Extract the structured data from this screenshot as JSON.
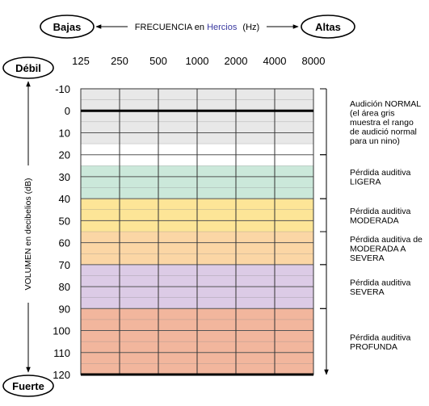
{
  "chart_data": {
    "type": "heatmap",
    "title": "",
    "xlabel": {
      "left_end": "Bajas",
      "right_end": "Altas",
      "prefix": "FRECUENCIA en",
      "unit_word": "Hercios",
      "unit_abbr": "(Hz)"
    },
    "ylabel": {
      "top_end": "Débil",
      "bottom_end": "Fuerte",
      "text": "VOLUMEN en decibelios (dB)"
    },
    "x_ticks": [
      125,
      250,
      500,
      1000,
      2000,
      4000,
      8000
    ],
    "y_ticks": [
      -10,
      0,
      10,
      20,
      30,
      40,
      50,
      60,
      70,
      80,
      90,
      100,
      110,
      120
    ],
    "ylim": [
      -10,
      120
    ],
    "y_inverted": true,
    "reference_line_db": 0,
    "bands": [
      {
        "from": -10,
        "to": 15,
        "color": "#e8e8e8",
        "label": [
          "Audición NORMAL",
          "(el área gris",
          "muestra el rango",
          "de audició normal",
          "para un nino)"
        ],
        "bracket": [
          -10,
          20
        ]
      },
      {
        "from": 25,
        "to": 40,
        "color": "#cbe8da",
        "label": [
          "Pérdida auditiva",
          "LIGERA"
        ],
        "bracket": [
          20,
          40
        ]
      },
      {
        "from": 40,
        "to": 55,
        "color": "#fde597",
        "label": [
          "Pérdida auditiva",
          "MODERADA"
        ],
        "bracket": [
          40,
          55
        ]
      },
      {
        "from": 55,
        "to": 70,
        "color": "#fbd6a5",
        "label": [
          "Pérdida auditiva de",
          "MODERADA A",
          "SEVERA"
        ],
        "bracket": [
          55,
          70
        ]
      },
      {
        "from": 70,
        "to": 90,
        "color": "#dccbe6",
        "label": [
          "Pérdida auditiva",
          "SEVERA"
        ],
        "bracket": [
          70,
          90
        ]
      },
      {
        "from": 90,
        "to": 120,
        "color": "#f2b69d",
        "label": [
          "Pérdida auditiva",
          "PROFUNDA"
        ],
        "bracket": [
          90,
          120
        ]
      }
    ]
  }
}
